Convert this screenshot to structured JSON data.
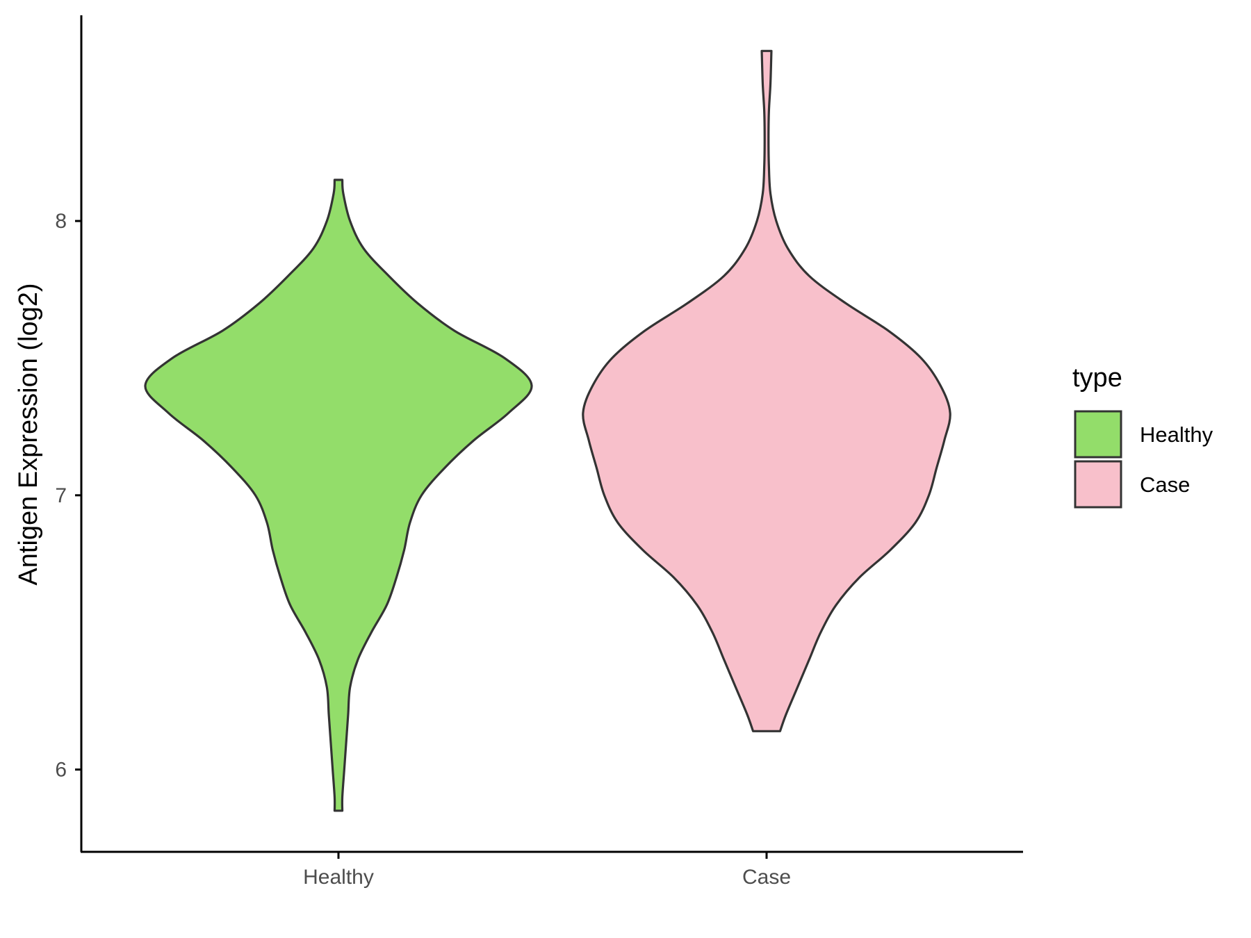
{
  "chart_data": {
    "type": "violin",
    "title": "",
    "xlabel": "",
    "ylabel": "Antigen Expression (log2)",
    "ylim": [
      5.7,
      8.75
    ],
    "yticks": [
      6,
      7,
      8
    ],
    "ytick_labels": [
      "6",
      "7",
      "8"
    ],
    "categories": [
      "Healthy",
      "Case"
    ],
    "grid": false,
    "legend": {
      "title": "type",
      "position": "right",
      "entries": [
        {
          "label": "Healthy",
          "color": "#93dd6a"
        },
        {
          "label": "Case",
          "color": "#f8c0cb"
        }
      ]
    },
    "series": [
      {
        "name": "Healthy",
        "color": "#93dd6a",
        "y_min": 5.85,
        "y_max": 8.15,
        "density_profile": [
          [
            5.85,
            0.02
          ],
          [
            5.9,
            0.02
          ],
          [
            6.0,
            0.03
          ],
          [
            6.1,
            0.04
          ],
          [
            6.2,
            0.05
          ],
          [
            6.3,
            0.06
          ],
          [
            6.4,
            0.1
          ],
          [
            6.5,
            0.17
          ],
          [
            6.6,
            0.25
          ],
          [
            6.7,
            0.3
          ],
          [
            6.8,
            0.34
          ],
          [
            6.9,
            0.37
          ],
          [
            7.0,
            0.43
          ],
          [
            7.1,
            0.55
          ],
          [
            7.2,
            0.7
          ],
          [
            7.3,
            0.88
          ],
          [
            7.4,
            1.0
          ],
          [
            7.5,
            0.86
          ],
          [
            7.6,
            0.6
          ],
          [
            7.7,
            0.41
          ],
          [
            7.8,
            0.26
          ],
          [
            7.9,
            0.13
          ],
          [
            8.0,
            0.06
          ],
          [
            8.1,
            0.025
          ],
          [
            8.15,
            0.02
          ]
        ]
      },
      {
        "name": "Case",
        "color": "#f8c0cb",
        "y_min": 6.14,
        "y_max": 8.62,
        "density_profile": [
          [
            6.14,
            0.07
          ],
          [
            6.2,
            0.1
          ],
          [
            6.3,
            0.16
          ],
          [
            6.4,
            0.22
          ],
          [
            6.5,
            0.28
          ],
          [
            6.6,
            0.36
          ],
          [
            6.7,
            0.48
          ],
          [
            6.8,
            0.64
          ],
          [
            6.9,
            0.77
          ],
          [
            7.0,
            0.84
          ],
          [
            7.1,
            0.88
          ],
          [
            7.2,
            0.92
          ],
          [
            7.3,
            0.95
          ],
          [
            7.4,
            0.9
          ],
          [
            7.5,
            0.8
          ],
          [
            7.6,
            0.63
          ],
          [
            7.7,
            0.41
          ],
          [
            7.8,
            0.22
          ],
          [
            7.9,
            0.11
          ],
          [
            8.0,
            0.05
          ],
          [
            8.1,
            0.02
          ],
          [
            8.2,
            0.012
          ],
          [
            8.3,
            0.01
          ],
          [
            8.4,
            0.012
          ],
          [
            8.5,
            0.02
          ],
          [
            8.62,
            0.025
          ]
        ]
      }
    ]
  }
}
